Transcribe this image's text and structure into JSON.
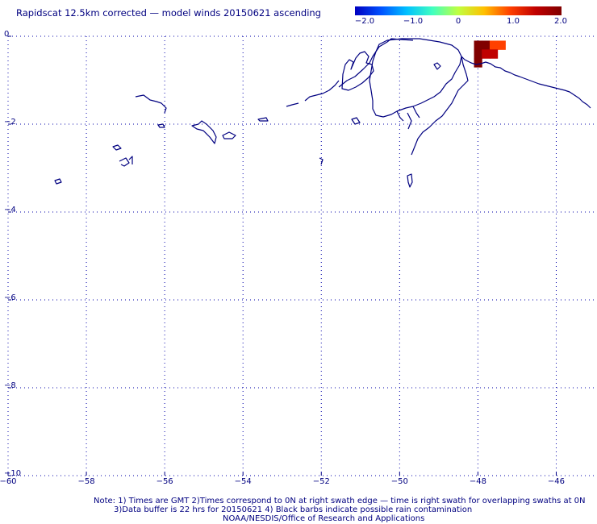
{
  "title": "Rapidscat 12.5km corrected — model winds 20150621 ascending",
  "colorbar": {
    "ticks": [
      "−2.0",
      "−1.0",
      "0",
      "1.0",
      "2.0"
    ],
    "tick_values": [
      -2.0,
      -1.0,
      0,
      1.0,
      2.0
    ],
    "range": [
      -2.0,
      2.0
    ],
    "colors": [
      "#0000c0",
      "#0050ff",
      "#00c0ff",
      "#40ffc0",
      "#c0ff40",
      "#ffc000",
      "#ff4000",
      "#c00000",
      "#800000"
    ]
  },
  "map": {
    "lat_labels": [
      "0",
      "−2",
      "−4",
      "−6",
      "−8",
      "−10"
    ],
    "lat_values": [
      0,
      -2,
      -4,
      -6,
      -8,
      -10
    ],
    "lon_labels": [
      "−60",
      "−58",
      "−56",
      "−54",
      "−52",
      "−50",
      "−48",
      "−46"
    ],
    "lon_values": [
      -60,
      -58,
      -56,
      -54,
      -52,
      -50,
      -48,
      -46
    ],
    "lon_range": [
      -60,
      -45
    ],
    "lat_range": [
      -10,
      0
    ],
    "grid": "dotted",
    "coast_color": "#000080",
    "wind_cells": [
      {
        "lon": -48.0,
        "lat": -0.2,
        "value": 2.0
      },
      {
        "lon": -47.8,
        "lat": -0.2,
        "value": 1.8
      },
      {
        "lon": -47.6,
        "lat": -0.2,
        "value": 1.2
      },
      {
        "lon": -47.4,
        "lat": -0.2,
        "value": 1.0
      },
      {
        "lon": -48.0,
        "lat": -0.4,
        "value": 2.0
      },
      {
        "lon": -47.8,
        "lat": -0.4,
        "value": 1.3
      },
      {
        "lon": -47.6,
        "lat": -0.4,
        "value": 1.5
      },
      {
        "lon": -48.0,
        "lat": -0.6,
        "value": 2.0
      }
    ]
  },
  "notes": {
    "line1": "Note: 1) Times are GMT 2)Times correspond to 0N at right swath edge — time is right swath for overlapping swaths at 0N",
    "line2": "3)Data buffer is 22 hrs for 20150621 4) Black barbs indicate possible rain contamination",
    "line3": "NOAA/NESDIS/Office of Research and Applications"
  }
}
